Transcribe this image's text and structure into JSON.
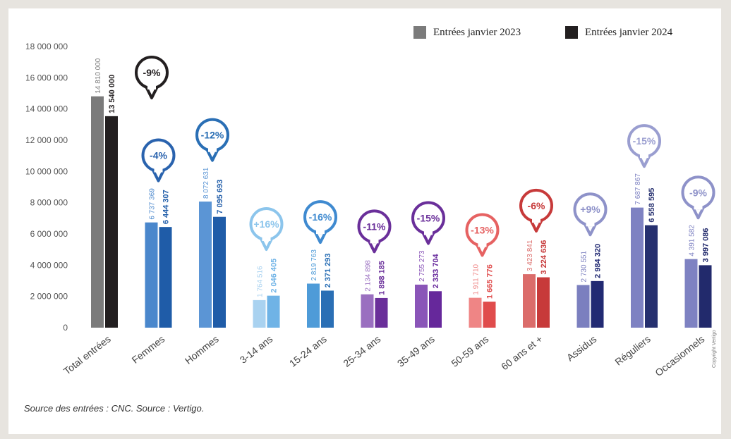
{
  "chart_data": {
    "type": "bar",
    "categories": [
      "Total entrées",
      "Femmes",
      "Hommes",
      "3-14 ans",
      "15-24 ans",
      "25-34 ans",
      "35-49 ans",
      "50-59 ans",
      "60 ans et +",
      "Assidus",
      "Réguliers",
      "Occasionnels"
    ],
    "series": [
      {
        "name": "Entrées janvier 2023",
        "color": "#7b7b7b",
        "values": [
          14810000,
          6737369,
          8072631,
          1764516,
          2819763,
          2134898,
          2755273,
          1911710,
          3423841,
          2730551,
          7687867,
          4391582
        ],
        "labels": [
          "14 810 000",
          "6 737 369",
          "8 072 631",
          "1 764 516",
          "2 819 763",
          "2 134 898",
          "2 755 273",
          "1 911 710",
          "3 423 841",
          "2 730 551",
          "7 687 867",
          "4 391 582"
        ]
      },
      {
        "name": "Entrées janvier 2024",
        "color": "#231f20",
        "values": [
          13540000,
          6444307,
          7095693,
          2046405,
          2371293,
          1898185,
          2333704,
          1665776,
          3224636,
          2984320,
          6558595,
          3997086
        ],
        "labels": [
          "13 540 000",
          "6 444 307",
          "7 095 693",
          "2 046 405",
          "2 371 293",
          "1 898 185",
          "2 333 704",
          "1 665 776",
          "3 224 636",
          "2 984 320",
          "6 558 595",
          "3 997 086"
        ]
      }
    ],
    "bar_colors_2023": [
      "#7b7b7b",
      "#4a87cc",
      "#5b95d5",
      "#a9d2f0",
      "#4e9bd8",
      "#9a6fc0",
      "#8a55b8",
      "#ef8585",
      "#db6c6a",
      "#7b7fbf",
      "#7e82c2",
      "#7e82c2"
    ],
    "bar_colors_2024": [
      "#231f20",
      "#1f5ca8",
      "#1f5ca8",
      "#6fb3e6",
      "#2a6fb5",
      "#6a2f9a",
      "#66289b",
      "#e04c4c",
      "#c73a3a",
      "#222a73",
      "#26306f",
      "#222a6c"
    ],
    "change_labels": [
      "-9%",
      "-4%",
      "-12%",
      "+16%",
      "-16%",
      "-11%",
      "-15%",
      "-13%",
      "-6%",
      "+9%",
      "-15%",
      "-9%"
    ],
    "change_colors": [
      "#231f20",
      "#2a63ae",
      "#2a6fb5",
      "#8cc5ec",
      "#3f8ad0",
      "#6a2f9a",
      "#6a2f9a",
      "#e66262",
      "#c73a3a",
      "#8e92c9",
      "#9a9ed0",
      "#8e92c9"
    ],
    "yticks": [
      0,
      2000000,
      4000000,
      6000000,
      8000000,
      10000000,
      12000000,
      14000000,
      16000000,
      18000000
    ],
    "ytick_labels": [
      "0",
      "2 000 000",
      "4 000 000",
      "6 000 000",
      "8 000 000",
      "10 000 000",
      "12 000 000",
      "14 000 000",
      "16 000 000",
      "18 000 000"
    ],
    "ylim": [
      0,
      18000000
    ],
    "grid": false,
    "legend_position": "top-right"
  },
  "source": "Source des entrées : CNC. Source : Vertigo.",
  "copyright": "Copyright Vertigo"
}
